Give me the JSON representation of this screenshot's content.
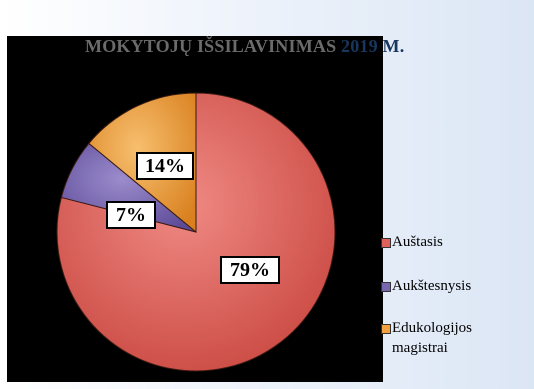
{
  "chart_data": {
    "type": "pie",
    "title_parts": [
      "MOKYTOJŲ IŠSILAVINIMAS",
      "2019 M."
    ],
    "categories": [
      "Auštasis",
      "Aukštesnysis",
      "Edukologijos magistrai"
    ],
    "values": [
      79,
      7,
      14
    ],
    "labels": [
      "79%",
      "7%",
      "14%"
    ],
    "colors": [
      "#e0615b",
      "#7866b0",
      "#f2a13e"
    ],
    "legend_position": "right"
  },
  "legend": {
    "items": [
      {
        "label": "Auštasis",
        "color": "#e0615b"
      },
      {
        "label": "Aukštesnysis",
        "color": "#7866b0"
      },
      {
        "label": "Edukologijos magistrai",
        "color": "#f2a13e"
      }
    ]
  }
}
